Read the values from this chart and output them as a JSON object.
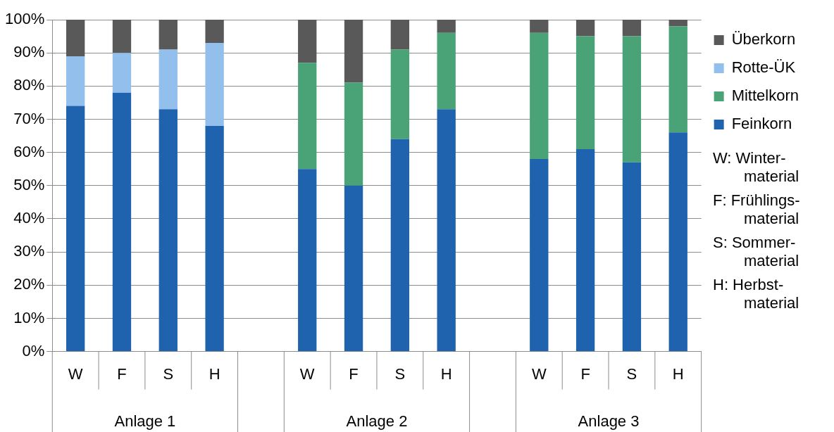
{
  "chart_data": {
    "type": "bar",
    "stacked": true,
    "categories": [
      "W",
      "F",
      "S",
      "H",
      null,
      "W",
      "F",
      "S",
      "H",
      null,
      "W",
      "F",
      "S",
      "H"
    ],
    "series": [
      {
        "name": "Feinkorn",
        "color": "#1f63ae",
        "values": [
          74,
          78,
          73,
          68,
          null,
          55,
          50,
          64,
          73,
          null,
          58,
          61,
          57,
          66
        ]
      },
      {
        "name": "Mittelkorn",
        "color": "#4aa377",
        "values": [
          null,
          null,
          null,
          null,
          null,
          32,
          31,
          27,
          23,
          null,
          38,
          34,
          38,
          32
        ]
      },
      {
        "name": "Rotte-ÜK",
        "color": "#93bfec",
        "values": [
          15,
          12,
          18,
          25,
          null,
          null,
          null,
          null,
          null,
          null,
          null,
          null,
          null,
          null
        ]
      },
      {
        "name": "Überkorn",
        "color": "#595959",
        "values": [
          11,
          10,
          9,
          7,
          null,
          13,
          19,
          9,
          4,
          null,
          4,
          5,
          5,
          2
        ]
      }
    ],
    "ylim": [
      0,
      100
    ],
    "yticks": [
      {
        "value": 0,
        "label": "0%"
      },
      {
        "value": 10,
        "label": "10%"
      },
      {
        "value": 20,
        "label": "20%"
      },
      {
        "value": 30,
        "label": "30%"
      },
      {
        "value": 40,
        "label": "40%"
      },
      {
        "value": 50,
        "label": "50%"
      },
      {
        "value": 60,
        "label": "60%"
      },
      {
        "value": 70,
        "label": "70%"
      },
      {
        "value": 80,
        "label": "80%"
      },
      {
        "value": 90,
        "label": "90%"
      },
      {
        "value": 100,
        "label": "100%"
      }
    ],
    "grid": "y",
    "legend": "right",
    "annotations": [
      "Anlage 1",
      "Anlage 2",
      "Anlage 3",
      "W: Winter-material",
      "F: Frühlings-material",
      "S: Sommer-material",
      "H: Herbst-material"
    ]
  }
}
